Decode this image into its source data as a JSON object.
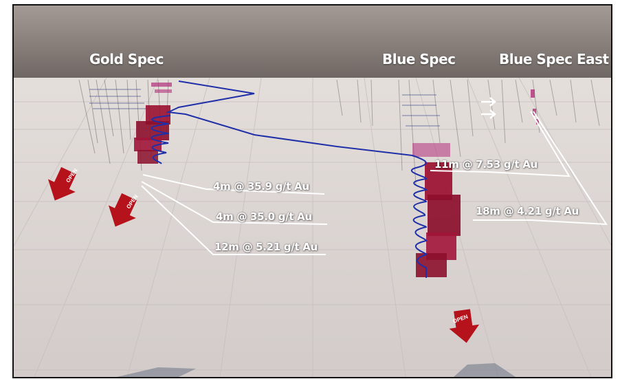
{
  "titles": {
    "gold_spec": "Gold Spec",
    "blue_spec": "Blue Spec",
    "blue_spec_east": "Blue Spec East"
  },
  "intercepts": {
    "gold_1": "4m @ 35.9 g/t Au",
    "gold_2": "4m @ 35.0 g/t Au",
    "gold_3": "12m @ 5.21 g/t Au",
    "blue_1": "11m @ 7.53 g/t Au",
    "blue_east_1": "18m @ 4.21 g/t Au"
  },
  "open_label": "OPEN",
  "colors": {
    "header_band": "#8a817d",
    "floor": "#d8d2d0",
    "ore_body": "#9a1030",
    "drill_trace": "#1f2fa8",
    "open_arrow": "#b5121b",
    "callout_line": "#ffffff"
  },
  "icons": [
    "open-arrow-icon",
    "double-arrow-icon"
  ]
}
